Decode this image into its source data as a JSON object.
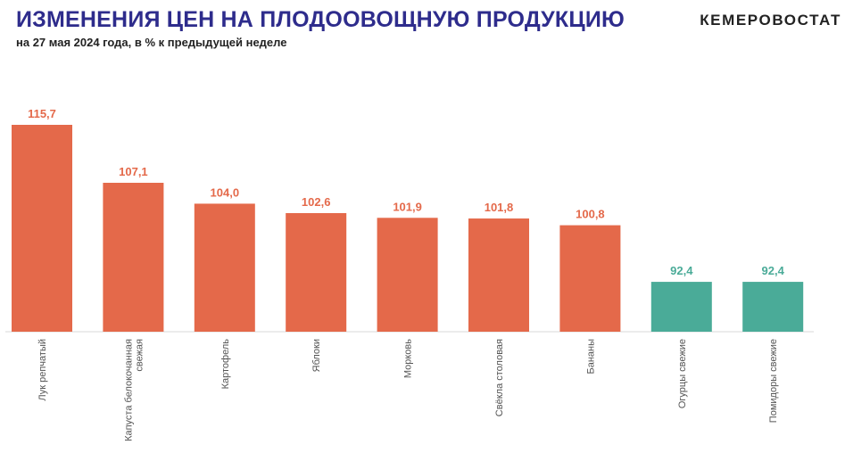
{
  "header": {
    "title": "ИЗМЕНЕНИЯ ЦЕН НА ПЛОДООВОЩНУЮ ПРОДУКЦИЮ",
    "subtitle": "на 27 мая 2024 года, в % к предыдущей неделе",
    "brand": "КЕМЕРОВОСТАТ"
  },
  "colors": {
    "increase": "#e4694a",
    "decrease": "#4aab98",
    "title": "#2e2c8c"
  },
  "chart_data": {
    "type": "bar",
    "title": "ИЗМЕНЕНИЯ ЦЕН НА ПЛОДООВОЩНУЮ ПРОДУКЦИЮ",
    "subtitle": "на 27 мая 2024 года, в % к предыдущей неделе",
    "xlabel": "",
    "ylabel": "",
    "categories": [
      [
        "Лук репчатый"
      ],
      [
        "Капуста белокочанная",
        "свежая"
      ],
      [
        "Картофель"
      ],
      [
        "Яблоки"
      ],
      [
        "Морковь"
      ],
      [
        "Свёкла столовая"
      ],
      [
        "Бананы"
      ],
      [
        "Огурцы свежие"
      ],
      [
        "Помидоры свежие"
      ]
    ],
    "values": [
      115.7,
      107.1,
      104.0,
      102.6,
      101.9,
      101.8,
      100.8,
      92.4,
      92.4
    ],
    "value_labels": [
      "115,7",
      "107,1",
      "104,0",
      "102,6",
      "101,9",
      "101,8",
      "100,8",
      "92,4",
      "92,4"
    ],
    "baseline": 85,
    "ylim": [
      85,
      115.7
    ],
    "grid": false,
    "legend": "none"
  }
}
